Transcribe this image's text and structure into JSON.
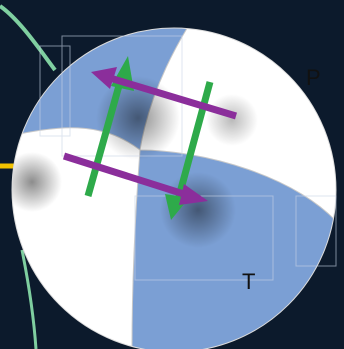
{
  "labels": {
    "p_axis": "P",
    "t_axis": "T"
  },
  "colors": {
    "background": "#0c1a2c",
    "compressional_quadrant": "#7b9fd4",
    "dilatational_quadrant": "#ffffff",
    "primary_arrow": "#2eaa4a",
    "secondary_arrow": "#8b2e9b",
    "road_line": "#7fcfa0",
    "yellow_line": "#f2c200"
  }
}
